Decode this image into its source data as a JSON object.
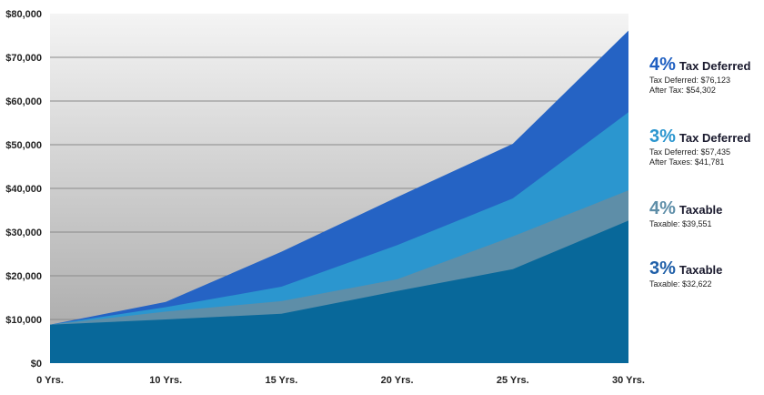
{
  "chart_data": {
    "type": "area",
    "categories": [
      "0 Yrs.",
      "10 Yrs.",
      "15 Yrs.",
      "20 Yrs.",
      "25 Yrs.",
      "30 Yrs."
    ],
    "y_tick_labels": [
      "$0",
      "$10,000",
      "$20,000",
      "$30,000",
      "$40,000",
      "$50,000",
      "$60,000",
      "$70,000",
      "$80,000"
    ],
    "ylim": [
      0,
      80000
    ],
    "grid": true,
    "legend_position": "right",
    "series": [
      {
        "name": "4% Tax Deferred",
        "color": "#2563c4",
        "values": [
          8800,
          14000,
          25500,
          38000,
          50200,
          76123
        ]
      },
      {
        "name": "3% Tax Deferred",
        "color": "#2b96cf",
        "values": [
          8800,
          12800,
          17500,
          27000,
          37700,
          57435
        ]
      },
      {
        "name": "4% Taxable",
        "color": "#5e8ea8",
        "values": [
          8800,
          11800,
          14200,
          19200,
          29000,
          39551
        ]
      },
      {
        "name": "3% Taxable",
        "color": "#08689a",
        "values": [
          8800,
          10000,
          11300,
          16500,
          21500,
          32622
        ]
      }
    ]
  },
  "legend": [
    {
      "pct": "4%",
      "name": "Tax Deferred",
      "color": "#2563c4",
      "lines": [
        "Tax Deferred: $76,123",
        "After Tax: $54,302"
      ]
    },
    {
      "pct": "3%",
      "name": "Tax Deferred",
      "color": "#2b96cf",
      "lines": [
        "Tax Deferred: $57,435",
        "After Taxes: $41,781"
      ]
    },
    {
      "pct": "4%",
      "name": "Taxable",
      "color": "#5e8ea8",
      "lines": [
        "Taxable: $39,551"
      ]
    },
    {
      "pct": "3%",
      "name": "Taxable",
      "color": "#1f5fa8",
      "lines": [
        "Taxable: $32,622"
      ]
    }
  ]
}
